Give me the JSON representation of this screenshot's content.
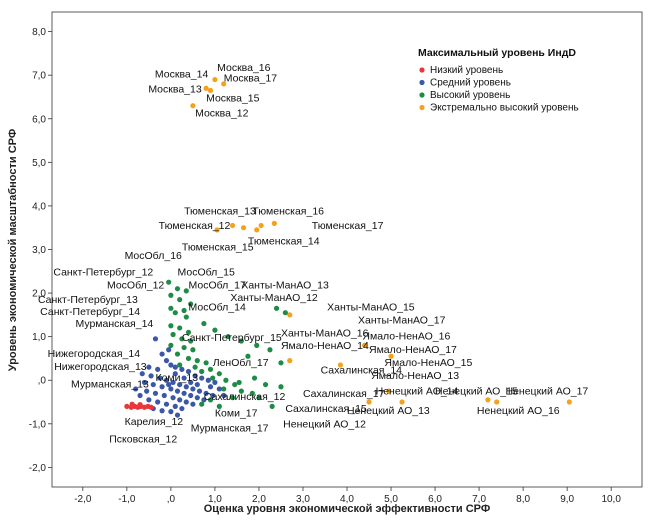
{
  "chart_data": {
    "type": "scatter",
    "xlabel": "Оценка уровня экономической эффективности СРФ",
    "ylabel": "Уровень экономической масштабности СРФ",
    "xlim": [
      -2.7,
      10.7
    ],
    "ylim": [
      -2.45,
      8.45
    ],
    "x_ticks": [
      "-2,0",
      "-1,0",
      ",0",
      "1,0",
      "2,0",
      "3,0",
      "4,0",
      "5,0",
      "6,0",
      "7,0",
      "8,0",
      "9,0",
      "10,0"
    ],
    "y_ticks": [
      "-2,0",
      "-1,0",
      ",0",
      "1,0",
      "2,0",
      "3,0",
      "4,0",
      "5,0",
      "6,0",
      "7,0",
      "8,0"
    ],
    "grid": false,
    "legend": {
      "position": "top-right",
      "title": "Максимальный уровень ИндD",
      "entries": [
        {
          "label": "Низкий уровень",
          "color": "#e8363b"
        },
        {
          "label": "Средний уровень",
          "color": "#3b58a8"
        },
        {
          "label": "Высокий уровень",
          "color": "#1e8c45"
        },
        {
          "label": "Экстремально высокий уровень",
          "color": "#f4a21c"
        }
      ]
    },
    "series": [
      {
        "name": "Экстремально высокий уровень",
        "color": "#f4a21c",
        "points": [
          [
            1.0,
            6.9
          ],
          [
            1.2,
            6.8
          ],
          [
            0.8,
            6.7
          ],
          [
            0.9,
            6.65
          ],
          [
            0.5,
            6.3
          ],
          [
            1.4,
            3.55
          ],
          [
            1.65,
            3.5
          ],
          [
            2.05,
            3.55
          ],
          [
            2.35,
            3.6
          ],
          [
            1.95,
            3.45
          ],
          [
            1.05,
            3.45
          ],
          [
            2.7,
            1.5
          ],
          [
            4.4,
            0.8
          ],
          [
            5.0,
            0.55
          ],
          [
            2.7,
            0.45
          ],
          [
            3.85,
            0.35
          ],
          [
            4.95,
            -0.25
          ],
          [
            5.25,
            -0.5
          ],
          [
            4.5,
            -0.5
          ],
          [
            7.2,
            -0.45
          ],
          [
            7.4,
            -0.5
          ],
          [
            9.05,
            -0.5
          ]
        ]
      },
      {
        "name": "Высокий уровень",
        "color": "#1e8c45",
        "points": [
          [
            -0.05,
            2.25
          ],
          [
            0.15,
            2.1
          ],
          [
            0.35,
            2.05
          ],
          [
            0.0,
            1.95
          ],
          [
            0.2,
            1.85
          ],
          [
            0.45,
            1.75
          ],
          [
            0.0,
            1.65
          ],
          [
            0.3,
            1.6
          ],
          [
            0.1,
            1.55
          ],
          [
            0.35,
            1.45
          ],
          [
            0.0,
            1.25
          ],
          [
            0.2,
            1.2
          ],
          [
            0.4,
            1.1
          ],
          [
            0.05,
            1.05
          ],
          [
            0.25,
            0.95
          ],
          [
            0.45,
            0.9
          ],
          [
            0.0,
            0.8
          ],
          [
            0.3,
            0.75
          ],
          [
            0.5,
            0.7
          ],
          [
            0.15,
            0.6
          ],
          [
            0.4,
            0.5
          ],
          [
            0.6,
            0.45
          ],
          [
            0.8,
            0.4
          ],
          [
            0.2,
            0.35
          ],
          [
            0.55,
            0.3
          ],
          [
            0.9,
            0.25
          ],
          [
            0.7,
            0.2
          ],
          [
            1.1,
            0.15
          ],
          [
            0.95,
            0.05
          ],
          [
            1.25,
            0.0
          ],
          [
            1.45,
            -0.1
          ],
          [
            1.2,
            -0.2
          ],
          [
            1.6,
            -0.25
          ],
          [
            1.85,
            -0.3
          ],
          [
            1.4,
            -0.4
          ],
          [
            0.9,
            -0.45
          ],
          [
            0.7,
            -0.55
          ],
          [
            1.1,
            -0.6
          ],
          [
            1.55,
            -0.05
          ],
          [
            1.9,
            0.05
          ],
          [
            2.15,
            -0.1
          ],
          [
            2.5,
            -0.15
          ],
          [
            2.0,
            -0.4
          ],
          [
            2.3,
            -0.6
          ],
          [
            1.3,
            1.0
          ],
          [
            1.6,
            0.9
          ],
          [
            1.95,
            0.8
          ],
          [
            2.25,
            0.7
          ],
          [
            1.75,
            0.55
          ],
          [
            2.5,
            0.4
          ],
          [
            2.6,
            1.55
          ],
          [
            2.4,
            1.65
          ],
          [
            0.75,
            1.3
          ],
          [
            1.0,
            1.15
          ]
        ]
      },
      {
        "name": "Средний уровень",
        "color": "#3b58a8",
        "points": [
          [
            -0.35,
            0.95
          ],
          [
            -0.2,
            0.6
          ],
          [
            -0.1,
            0.45
          ],
          [
            0.0,
            0.35
          ],
          [
            0.1,
            0.3
          ],
          [
            0.25,
            0.25
          ],
          [
            -0.3,
            0.25
          ],
          [
            0.4,
            0.2
          ],
          [
            0.55,
            0.1
          ],
          [
            0.7,
            0.05
          ],
          [
            0.85,
            0.0
          ],
          [
            1.0,
            -0.05
          ],
          [
            -0.45,
            0.1
          ],
          [
            -0.25,
            0.05
          ],
          [
            -0.1,
            0.0
          ],
          [
            0.05,
            -0.05
          ],
          [
            0.2,
            -0.1
          ],
          [
            0.35,
            -0.15
          ],
          [
            0.5,
            -0.2
          ],
          [
            0.65,
            -0.25
          ],
          [
            0.8,
            -0.3
          ],
          [
            0.95,
            -0.35
          ],
          [
            -0.6,
            -0.05
          ],
          [
            -0.4,
            -0.1
          ],
          [
            -0.2,
            -0.15
          ],
          [
            0.0,
            -0.2
          ],
          [
            0.15,
            -0.25
          ],
          [
            0.3,
            -0.3
          ],
          [
            0.45,
            -0.35
          ],
          [
            0.6,
            -0.4
          ],
          [
            0.75,
            -0.45
          ],
          [
            -0.55,
            -0.25
          ],
          [
            -0.35,
            -0.3
          ],
          [
            -0.15,
            -0.35
          ],
          [
            0.05,
            -0.4
          ],
          [
            0.2,
            -0.45
          ],
          [
            0.35,
            -0.5
          ],
          [
            0.5,
            -0.55
          ],
          [
            -0.5,
            -0.45
          ],
          [
            -0.3,
            -0.5
          ],
          [
            -0.1,
            -0.55
          ],
          [
            0.1,
            -0.6
          ],
          [
            0.25,
            -0.65
          ],
          [
            -0.4,
            -0.65
          ],
          [
            -0.2,
            -0.7
          ],
          [
            0.0,
            -0.72
          ],
          [
            -0.7,
            -0.35
          ],
          [
            -0.8,
            -0.2
          ],
          [
            -0.65,
            0.15
          ],
          [
            -0.5,
            0.3
          ],
          [
            0.3,
            0.05
          ],
          [
            0.1,
            0.15
          ],
          [
            -0.05,
            -0.1
          ],
          [
            0.45,
            -0.05
          ],
          [
            0.6,
            -0.1
          ],
          [
            0.9,
            -0.15
          ],
          [
            1.1,
            -0.2
          ],
          [
            1.2,
            -0.35
          ],
          [
            0.15,
            -0.8
          ],
          [
            -0.05,
            0.7
          ]
        ]
      },
      {
        "name": "Низкий уровень",
        "color": "#e8363b",
        "points": [
          [
            -1.0,
            -0.6
          ],
          [
            -0.9,
            -0.62
          ],
          [
            -0.82,
            -0.6
          ],
          [
            -0.75,
            -0.62
          ],
          [
            -0.68,
            -0.6
          ],
          [
            -0.6,
            -0.62
          ],
          [
            -0.52,
            -0.6
          ],
          [
            -0.45,
            -0.62
          ],
          [
            -0.88,
            -0.55
          ],
          [
            -0.7,
            -0.56
          ]
        ]
      }
    ],
    "annotations": [
      {
        "text": "Москва_16",
        "x": 1.05,
        "y": 7.1,
        "anchor": "start"
      },
      {
        "text": "Москва_14",
        "x": 0.85,
        "y": 6.95,
        "anchor": "end"
      },
      {
        "text": "Москва_17",
        "x": 1.2,
        "y": 6.85,
        "anchor": "start"
      },
      {
        "text": "Москва_13",
        "x": 0.7,
        "y": 6.6,
        "anchor": "end"
      },
      {
        "text": "Москва_15",
        "x": 0.8,
        "y": 6.4,
        "anchor": "start"
      },
      {
        "text": "Москва_12",
        "x": 0.55,
        "y": 6.05,
        "anchor": "start"
      },
      {
        "text": "Тюменская_13",
        "x": 0.3,
        "y": 3.8,
        "anchor": "start"
      },
      {
        "text": "Тюменская_16",
        "x": 1.85,
        "y": 3.8,
        "anchor": "start"
      },
      {
        "text": "Тюменская_12",
        "x": 1.35,
        "y": 3.47,
        "anchor": "end"
      },
      {
        "text": "Тюменская_17",
        "x": 3.2,
        "y": 3.47,
        "anchor": "start"
      },
      {
        "text": "Тюменская_14",
        "x": 1.75,
        "y": 3.12,
        "anchor": "start"
      },
      {
        "text": "Тюменская_15",
        "x": 0.25,
        "y": 2.98,
        "anchor": "start"
      },
      {
        "text": "МосОбл_16",
        "x": 0.25,
        "y": 2.78,
        "anchor": "end"
      },
      {
        "text": "Санкт-Петербург_12",
        "x": -0.4,
        "y": 2.4,
        "anchor": "end"
      },
      {
        "text": "МосОбл_15",
        "x": 0.15,
        "y": 2.4,
        "anchor": "start"
      },
      {
        "text": "МосОбл_12",
        "x": -0.15,
        "y": 2.1,
        "anchor": "end"
      },
      {
        "text": "МосОбл_17",
        "x": 0.4,
        "y": 2.1,
        "anchor": "start"
      },
      {
        "text": "Ханты-МанАО_13",
        "x": 1.6,
        "y": 2.1,
        "anchor": "start"
      },
      {
        "text": "Санкт-Петербург_13",
        "x": -0.75,
        "y": 1.77,
        "anchor": "end"
      },
      {
        "text": "Ханты-МанАО_12",
        "x": 1.35,
        "y": 1.82,
        "anchor": "start"
      },
      {
        "text": "Ханты-МанАО_15",
        "x": 3.55,
        "y": 1.6,
        "anchor": "start"
      },
      {
        "text": "Санкт-Петербург_14",
        "x": -0.7,
        "y": 1.5,
        "anchor": "end"
      },
      {
        "text": "МосОбл_14",
        "x": 0.4,
        "y": 1.6,
        "anchor": "start"
      },
      {
        "text": "Ханты-МанАО_17",
        "x": 4.25,
        "y": 1.3,
        "anchor": "start"
      },
      {
        "text": "Мурманская_14",
        "x": -0.4,
        "y": 1.22,
        "anchor": "end"
      },
      {
        "text": "Ханты-МанАО_16",
        "x": 2.5,
        "y": 1.0,
        "anchor": "start"
      },
      {
        "text": "Санкт-Петербург_15",
        "x": 0.25,
        "y": 0.9,
        "anchor": "start"
      },
      {
        "text": "Ямало-НенАО_16",
        "x": 4.35,
        "y": 0.93,
        "anchor": "start"
      },
      {
        "text": "Ямало-НенАО_14",
        "x": 2.5,
        "y": 0.72,
        "anchor": "start"
      },
      {
        "text": "Ямало-НенАО_17",
        "x": 4.5,
        "y": 0.62,
        "anchor": "start"
      },
      {
        "text": "Нижегородская_14",
        "x": -0.7,
        "y": 0.53,
        "anchor": "end"
      },
      {
        "text": "ЛенОбл_17",
        "x": 0.95,
        "y": 0.33,
        "anchor": "start"
      },
      {
        "text": "Ямало-НенАО_15",
        "x": 4.85,
        "y": 0.33,
        "anchor": "start"
      },
      {
        "text": "Нижегородская_13",
        "x": -0.55,
        "y": 0.23,
        "anchor": "end"
      },
      {
        "text": "Сахалинская_14",
        "x": 3.4,
        "y": 0.15,
        "anchor": "start"
      },
      {
        "text": "Ямало-НенАО_13",
        "x": 4.55,
        "y": 0.03,
        "anchor": "start"
      },
      {
        "text": "Коми_13",
        "x": -0.35,
        "y": -0.02,
        "anchor": "start"
      },
      {
        "text": "Мурманская_13",
        "x": -0.5,
        "y": -0.17,
        "anchor": "end"
      },
      {
        "text": "Ненецкий АО_14",
        "x": 4.65,
        "y": -0.33,
        "anchor": "start"
      },
      {
        "text": "Ненецкий АО_15",
        "x": 6.0,
        "y": -0.33,
        "anchor": "start"
      },
      {
        "text": "Ненецкий АО_17",
        "x": 7.6,
        "y": -0.33,
        "anchor": "start"
      },
      {
        "text": "Сахалинская_17",
        "x": 3.0,
        "y": -0.38,
        "anchor": "start"
      },
      {
        "text": "Сахалинская_12",
        "x": 0.75,
        "y": -0.45,
        "anchor": "start"
      },
      {
        "text": "Сахалинская_15",
        "x": 2.6,
        "y": -0.73,
        "anchor": "start"
      },
      {
        "text": "Ненецкий АО_13",
        "x": 4.0,
        "y": -0.78,
        "anchor": "start"
      },
      {
        "text": "Ненецкий АО_16",
        "x": 6.95,
        "y": -0.78,
        "anchor": "start"
      },
      {
        "text": "Коми_17",
        "x": 1.0,
        "y": -0.83,
        "anchor": "start"
      },
      {
        "text": "Карелия_12",
        "x": -1.05,
        "y": -1.03,
        "anchor": "start"
      },
      {
        "text": "Ненецкий АО_12",
        "x": 2.55,
        "y": -1.08,
        "anchor": "start"
      },
      {
        "text": "Мурманская_17",
        "x": 0.45,
        "y": -1.18,
        "anchor": "start"
      },
      {
        "text": "Псковская_12",
        "x": -1.4,
        "y": -1.43,
        "anchor": "start"
      }
    ]
  }
}
